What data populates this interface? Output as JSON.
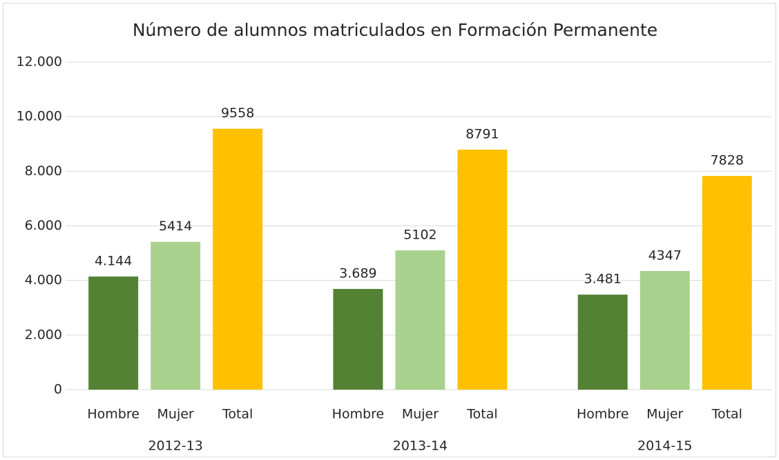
{
  "chart_data": {
    "type": "bar",
    "title": "Número de alumnos matriculados en Formación Permanente",
    "categories": [
      "2012-13",
      "2013-14",
      "2014-15"
    ],
    "series": [
      {
        "name": "Hombre",
        "color": "#548235",
        "values": [
          4144,
          3689,
          3481
        ],
        "value_labels": [
          "4.144",
          "3.689",
          "3.481"
        ]
      },
      {
        "name": "Mujer",
        "color": "#a9d18e",
        "values": [
          5414,
          5102,
          4347
        ]
      },
      {
        "name": "Total",
        "color": "#ffc000",
        "values": [
          9558,
          8791,
          7828
        ]
      }
    ],
    "ylim": [
      0,
      12000
    ],
    "yticks": [
      0,
      {
        "value": 2000,
        "label": "2.000"
      },
      {
        "value": 4000,
        "label": "4.000"
      },
      {
        "value": 6000,
        "label": "6.000"
      },
      {
        "value": 8000,
        "label": "8.000"
      },
      {
        "value": 10000,
        "label": "10.000"
      },
      {
        "value": 12000,
        "label": "12.000"
      }
    ],
    "grid": true
  }
}
